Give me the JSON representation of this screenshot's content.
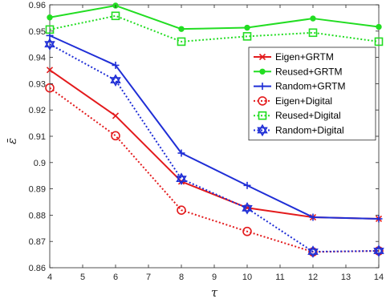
{
  "chart_data": {
    "type": "line",
    "xlabel": "τ",
    "ylabel": "ε̄",
    "xlim": [
      4,
      14
    ],
    "ylim": [
      0.86,
      0.96
    ],
    "xticks": [
      4,
      5,
      6,
      7,
      8,
      9,
      10,
      11,
      12,
      13,
      14
    ],
    "yticks": [
      "0.86",
      "0.87",
      "0.88",
      "0.89",
      "0.9",
      "0.91",
      "0.92",
      "0.93",
      "0.94",
      "0.95",
      "0.96"
    ],
    "grid": false,
    "legend_position": "top-right",
    "x": [
      4,
      6,
      8,
      10,
      12,
      14
    ],
    "series": [
      {
        "name": "Eigen+GRTM",
        "color": "#e31a1c",
        "style": "solid",
        "marker": "x",
        "values": [
          0.9352,
          0.9178,
          0.8928,
          0.8828,
          0.8792,
          0.8786
        ]
      },
      {
        "name": "Reused+GRTM",
        "color": "#22dd22",
        "style": "solid",
        "marker": "circle-filled",
        "values": [
          0.9552,
          0.9597,
          0.9508,
          0.9513,
          0.9548,
          0.9516
        ]
      },
      {
        "name": "Random+GRTM",
        "color": "#1f2ed6",
        "style": "solid",
        "marker": "plus",
        "values": [
          0.9483,
          0.937,
          0.9036,
          0.8913,
          0.8792,
          0.8786
        ]
      },
      {
        "name": "Eigen+Digital",
        "color": "#e31a1c",
        "style": "dotted",
        "marker": "circle",
        "values": [
          0.9284,
          0.9102,
          0.8819,
          0.8738,
          0.866,
          0.8664
        ]
      },
      {
        "name": "Reused+Digital",
        "color": "#22dd22",
        "style": "dotted",
        "marker": "square",
        "values": [
          0.9506,
          0.9558,
          0.946,
          0.948,
          0.9494,
          0.946
        ]
      },
      {
        "name": "Random+Digital",
        "color": "#1f2ed6",
        "style": "dotted",
        "marker": "hexagram",
        "values": [
          0.945,
          0.9313,
          0.8938,
          0.8826,
          0.8661,
          0.8664
        ]
      }
    ]
  }
}
